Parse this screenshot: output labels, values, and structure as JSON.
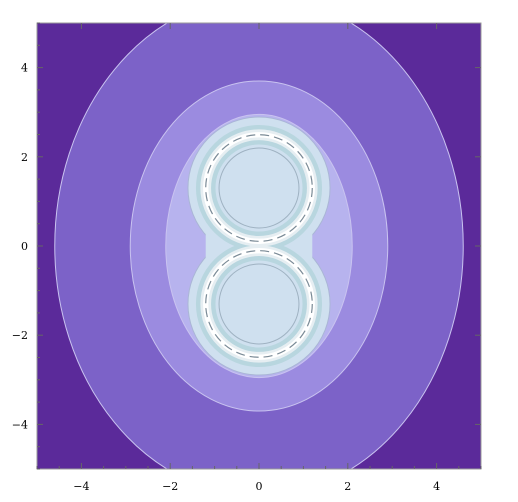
{
  "chart_data": {
    "type": "heatmap",
    "title": "",
    "xlabel": "",
    "ylabel": "",
    "xlim": [
      -5,
      5
    ],
    "ylim": [
      -5,
      5
    ],
    "grid": false,
    "x_ticks": [
      -4,
      -2,
      0,
      2,
      4
    ],
    "y_ticks": [
      -4,
      -2,
      0,
      2,
      4
    ],
    "x_tick_labels": [
      "−4",
      "−2",
      "0",
      "2",
      "4"
    ],
    "y_tick_labels": [
      "−4",
      "−2",
      "0",
      "2",
      "4"
    ],
    "contour_levels": [
      {
        "color": "#5b2a9a"
      },
      {
        "color": "#7c62c8"
      },
      {
        "color": "#9b8be0"
      },
      {
        "color": "#b7b3ee"
      },
      {
        "color": "#cfe0ef"
      },
      {
        "color": "#b8d6df"
      },
      {
        "color": "#ffffff"
      }
    ],
    "curve": {
      "shape": "figure-eight (two stacked circles)",
      "circle_centers": [
        [
          0,
          1.3
        ],
        [
          0,
          -1.3
        ]
      ],
      "circle_radius": 1.2
    }
  }
}
